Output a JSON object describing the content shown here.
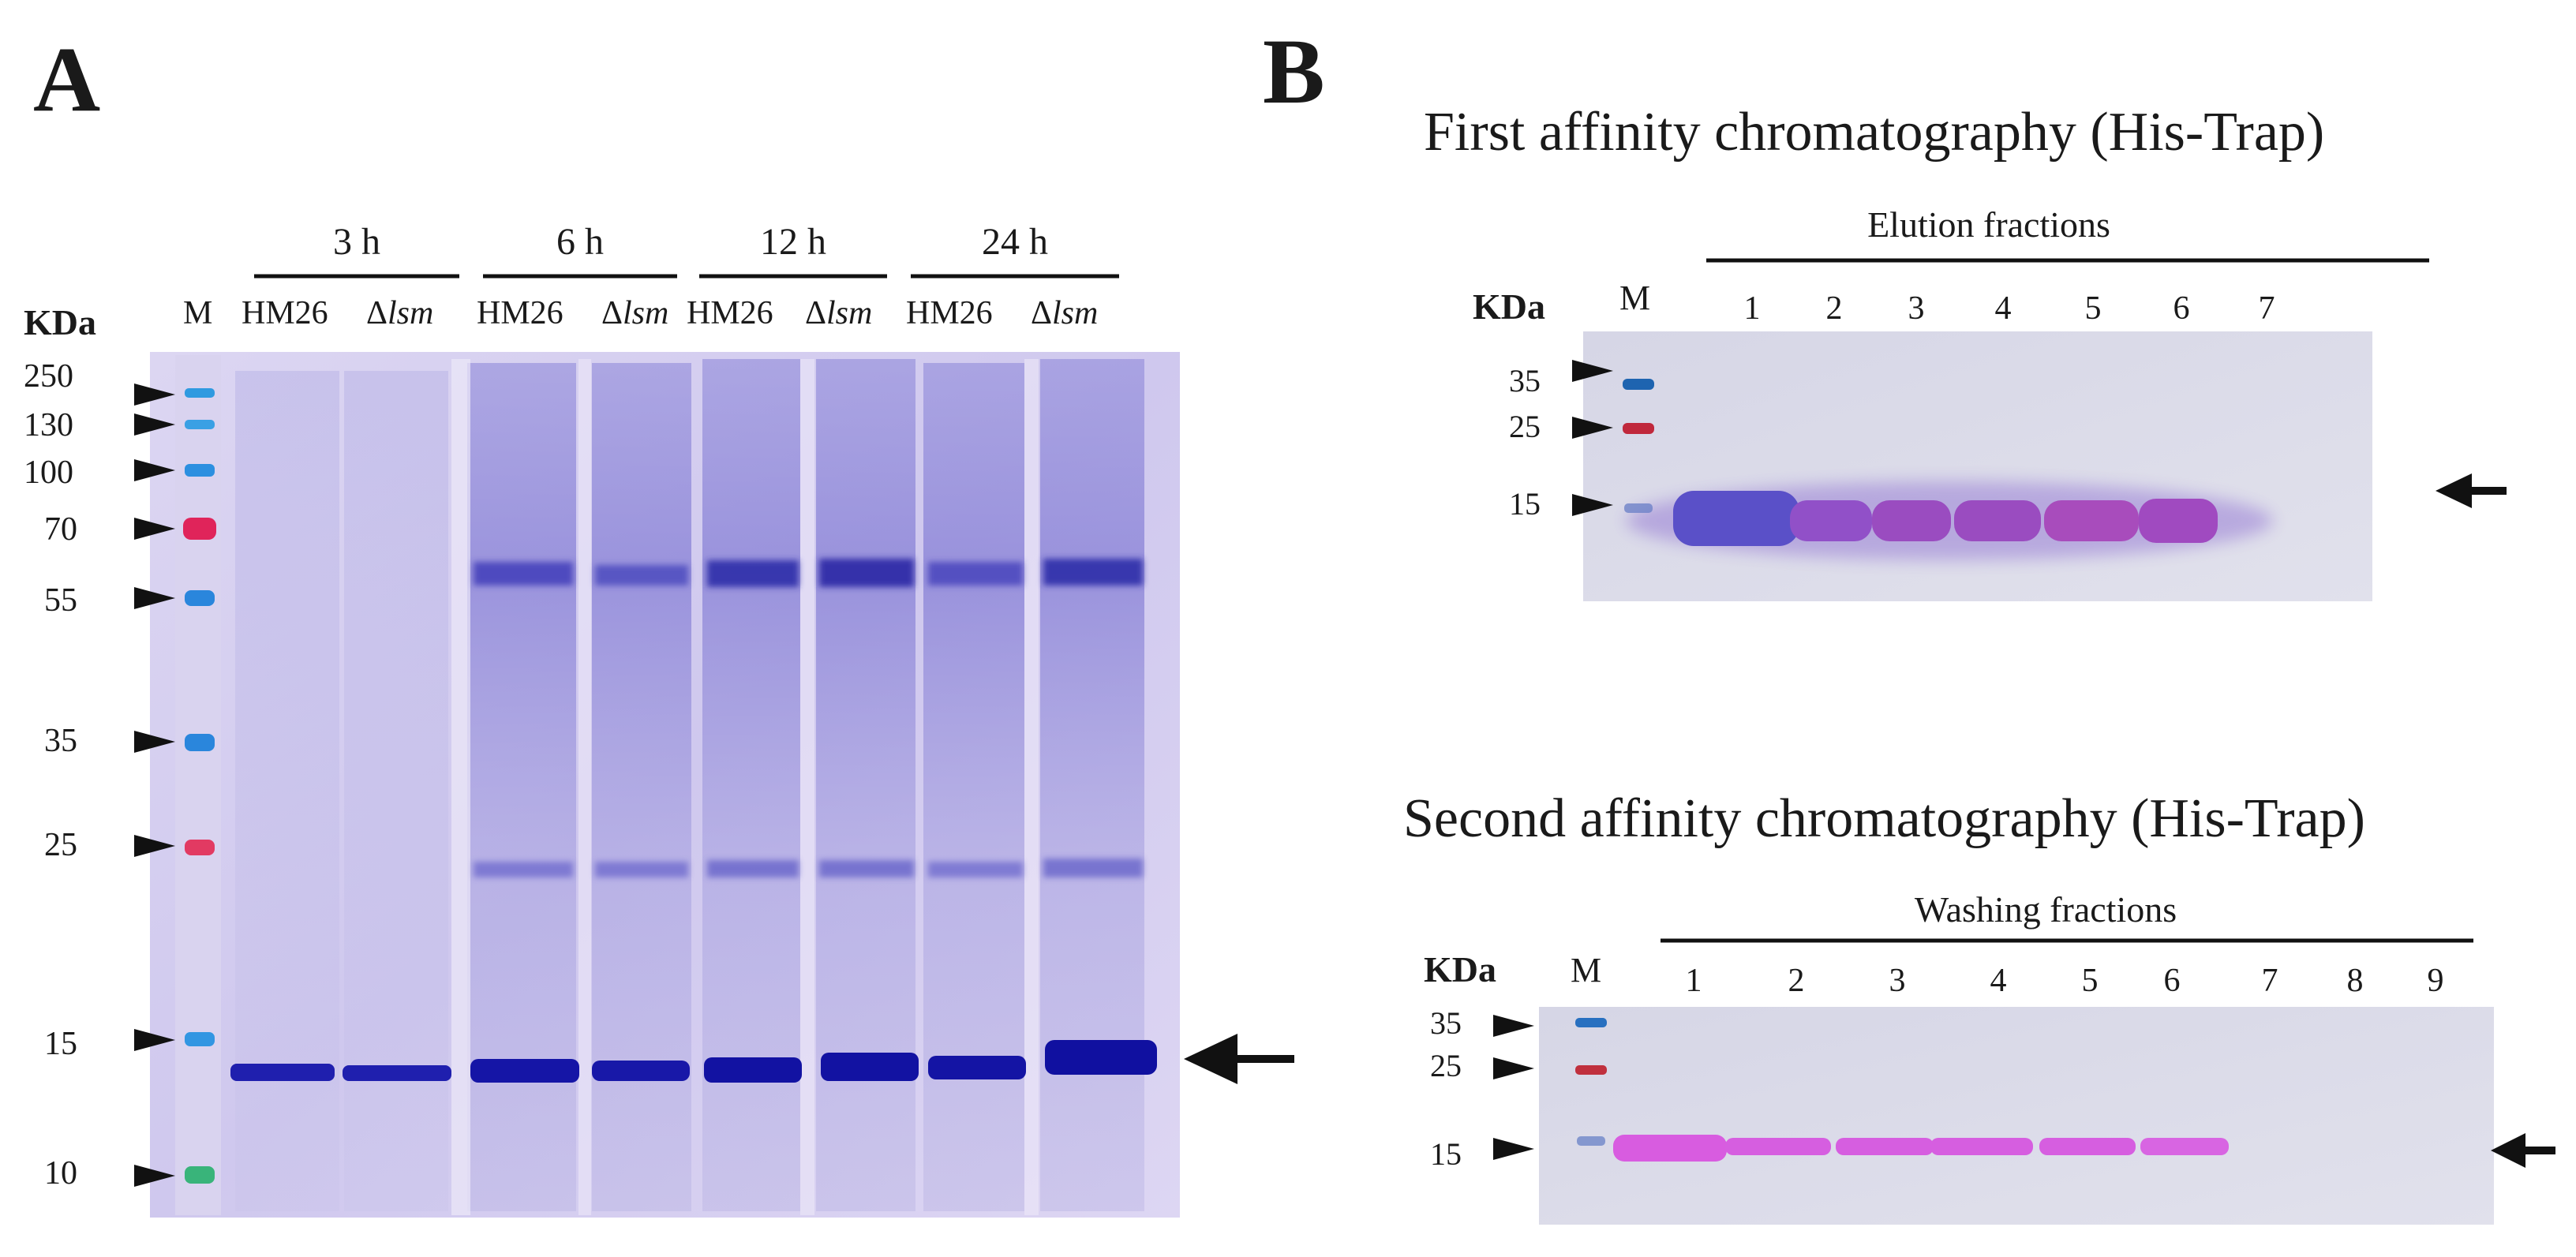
{
  "panel_a": {
    "letter": "A",
    "kda_label": "KDa",
    "marker_label": "M",
    "time_groups": [
      "3 h",
      "6 h",
      "12 h",
      "24 h"
    ],
    "strains": [
      "HM26",
      "lsm"
    ],
    "strain_prefix": "Δ",
    "mw_markers": [
      "250",
      "130",
      "100",
      "70",
      "55",
      "35",
      "25",
      "15",
      "10"
    ],
    "marker_colors": [
      "#2f9ae0",
      "#3aa0e4",
      "#2c8fe0",
      "#e0245a",
      "#2a86dc",
      "#2a86dc",
      "#e23a62",
      "#3296e2",
      "#39b47a"
    ]
  },
  "panel_b": {
    "letter": "B",
    "top": {
      "title": "First affinity chromatography (His-Trap)",
      "fraction_header": "Elution fractions",
      "kda_label": "KDa",
      "marker_label": "M",
      "lanes": [
        "1",
        "2",
        "3",
        "4",
        "5",
        "6",
        "7"
      ],
      "mw_markers": [
        "35",
        "25",
        "15"
      ]
    },
    "bottom": {
      "title": "Second affinity chromatography (His-Trap)",
      "fraction_header": "Washing fractions",
      "kda_label": "KDa",
      "marker_label": "M",
      "lanes": [
        "1",
        "2",
        "3",
        "4",
        "5",
        "6",
        "7",
        "8",
        "9"
      ],
      "mw_markers": [
        "35",
        "25",
        "15"
      ]
    }
  }
}
